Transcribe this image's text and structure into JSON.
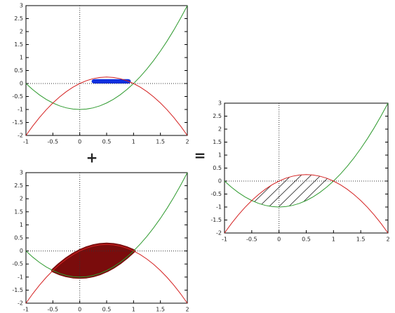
{
  "chart_data": [
    {
      "type": "line",
      "x": [
        -1,
        -0.875,
        -0.75,
        -0.625,
        -0.5,
        -0.375,
        -0.25,
        -0.125,
        0,
        0.125,
        0.25,
        0.375,
        0.5,
        0.625,
        0.75,
        0.875,
        1,
        1.125,
        1.25,
        1.375,
        1.5,
        1.625,
        1.75,
        1.875,
        2
      ],
      "series": [
        {
          "color": "#2e9a2e",
          "values": [
            0,
            -0.234375,
            -0.4375,
            -0.609375,
            -0.75,
            -0.859375,
            -0.9375,
            -0.984375,
            -1,
            -0.984375,
            -0.9375,
            -0.859375,
            -0.75,
            -0.609375,
            -0.4375,
            -0.234375,
            0,
            0.265625,
            0.5625,
            0.890625,
            1.25,
            1.640625,
            2.0625,
            2.515625,
            3
          ]
        },
        {
          "color": "#d42020",
          "values": [
            -2,
            -1.640625,
            -1.3125,
            -1.015625,
            -0.75,
            -0.515625,
            -0.3125,
            -0.140625,
            0,
            0.109375,
            0.1875,
            0.234375,
            0.25,
            0.234375,
            0.1875,
            0.109375,
            0,
            -0.140625,
            -0.3125,
            -0.515625,
            -0.75,
            -1.015625,
            -1.3125,
            -1.640625,
            -2
          ]
        }
      ],
      "xlim": [
        -1,
        2
      ],
      "ylim": [
        -2,
        3
      ],
      "xticks": [
        -1,
        -0.5,
        0,
        0.5,
        1,
        1.5,
        2
      ],
      "yticks": [
        -2,
        -1.5,
        -1,
        -0.5,
        0,
        0.5,
        1,
        1.5,
        2,
        2.5,
        3
      ]
    },
    {
      "type": "line",
      "x": [
        -1,
        -0.875,
        -0.75,
        -0.625,
        -0.5,
        -0.375,
        -0.25,
        -0.125,
        0,
        0.125,
        0.25,
        0.375,
        0.5,
        0.625,
        0.75,
        0.875,
        1,
        1.125,
        1.25,
        1.375,
        1.5,
        1.625,
        1.75,
        1.875,
        2
      ],
      "series": [
        {
          "color": "#2e9a2e",
          "values": [
            0,
            -0.234375,
            -0.4375,
            -0.609375,
            -0.75,
            -0.859375,
            -0.9375,
            -0.984375,
            -1,
            -0.984375,
            -0.9375,
            -0.859375,
            -0.75,
            -0.609375,
            -0.4375,
            -0.234375,
            0,
            0.265625,
            0.5625,
            0.890625,
            1.25,
            1.640625,
            2.0625,
            2.515625,
            3
          ]
        },
        {
          "color": "#d42020",
          "values": [
            -2,
            -1.640625,
            -1.3125,
            -1.015625,
            -0.75,
            -0.515625,
            -0.3125,
            -0.140625,
            0,
            0.109375,
            0.1875,
            0.234375,
            0.25,
            0.234375,
            0.1875,
            0.109375,
            0,
            -0.140625,
            -0.3125,
            -0.515625,
            -0.75,
            -1.015625,
            -1.3125,
            -1.640625,
            -2
          ]
        }
      ],
      "xlim": [
        -1,
        2
      ],
      "ylim": [
        -2,
        3
      ],
      "xticks": [
        -1,
        -0.5,
        0,
        0.5,
        1,
        1.5,
        2
      ],
      "yticks": [
        -2,
        -1.5,
        -1,
        -0.5,
        0,
        0.5,
        1,
        1.5,
        2,
        2.5,
        3
      ]
    },
    {
      "type": "line",
      "x": [
        -1,
        -0.875,
        -0.75,
        -0.625,
        -0.5,
        -0.375,
        -0.25,
        -0.125,
        0,
        0.125,
        0.25,
        0.375,
        0.5,
        0.625,
        0.75,
        0.875,
        1,
        1.125,
        1.25,
        1.375,
        1.5,
        1.625,
        1.75,
        1.875,
        2
      ],
      "series": [
        {
          "color": "#2e9a2e",
          "values": [
            0,
            -0.234375,
            -0.4375,
            -0.609375,
            -0.75,
            -0.859375,
            -0.9375,
            -0.984375,
            -1,
            -0.984375,
            -0.9375,
            -0.859375,
            -0.75,
            -0.609375,
            -0.4375,
            -0.234375,
            0,
            0.265625,
            0.5625,
            0.890625,
            1.25,
            1.640625,
            2.0625,
            2.515625,
            3
          ]
        },
        {
          "color": "#d42020",
          "values": [
            -2,
            -1.640625,
            -1.3125,
            -1.015625,
            -0.75,
            -0.515625,
            -0.3125,
            -0.140625,
            0,
            0.109375,
            0.1875,
            0.234375,
            0.25,
            0.234375,
            0.1875,
            0.109375,
            0,
            -0.140625,
            -0.3125,
            -0.515625,
            -0.75,
            -1.015625,
            -1.3125,
            -1.640625,
            -2
          ]
        }
      ],
      "xlim": [
        -1,
        2
      ],
      "ylim": [
        -2,
        3
      ],
      "xticks": [
        -1,
        -0.5,
        0,
        0.5,
        1,
        1.5,
        2
      ],
      "yticks": [
        -2,
        -1.5,
        -1,
        -0.5,
        0,
        0.5,
        1,
        1.5,
        2,
        2.5,
        3
      ]
    }
  ],
  "operators": [
    "+",
    "="
  ]
}
